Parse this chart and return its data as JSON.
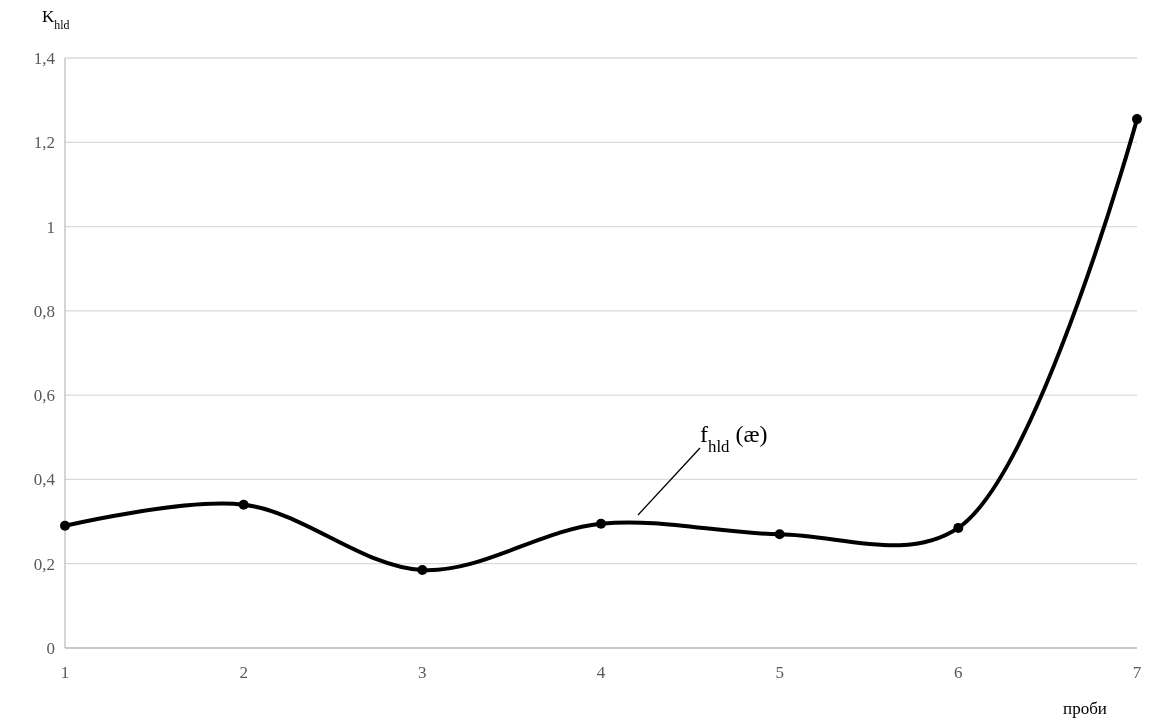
{
  "chart_data": {
    "type": "line",
    "xlabel": "проби",
    "ylabel": "K$_{hld}$",
    "x": [
      1,
      2,
      3,
      4,
      5,
      6,
      7
    ],
    "series": [
      {
        "color": "#000000",
        "values": [
          0.29,
          0.34,
          0.185,
          0.295,
          0.27,
          0.285,
          1.255
        ]
      }
    ],
    "xlim": [
      1,
      7
    ],
    "xticks": [
      1,
      2,
      3,
      4,
      5,
      6,
      7
    ],
    "ylim": [
      0,
      1.4
    ],
    "yticks": [
      0,
      {
        "value": 0.2,
        "label": "0,2"
      },
      {
        "value": 0.4,
        "label": "0,4"
      },
      {
        "value": 0.6,
        "label": "0,6"
      },
      {
        "value": 0.8,
        "label": "0,8"
      },
      1,
      {
        "value": 1.2,
        "label": "1,2"
      },
      {
        "value": 1.4,
        "label": "1,4"
      }
    ],
    "grid": "y",
    "marker": "circle",
    "line_style": "solid",
    "annotations": [
      "f$_{hld}$ (æ)"
    ]
  }
}
